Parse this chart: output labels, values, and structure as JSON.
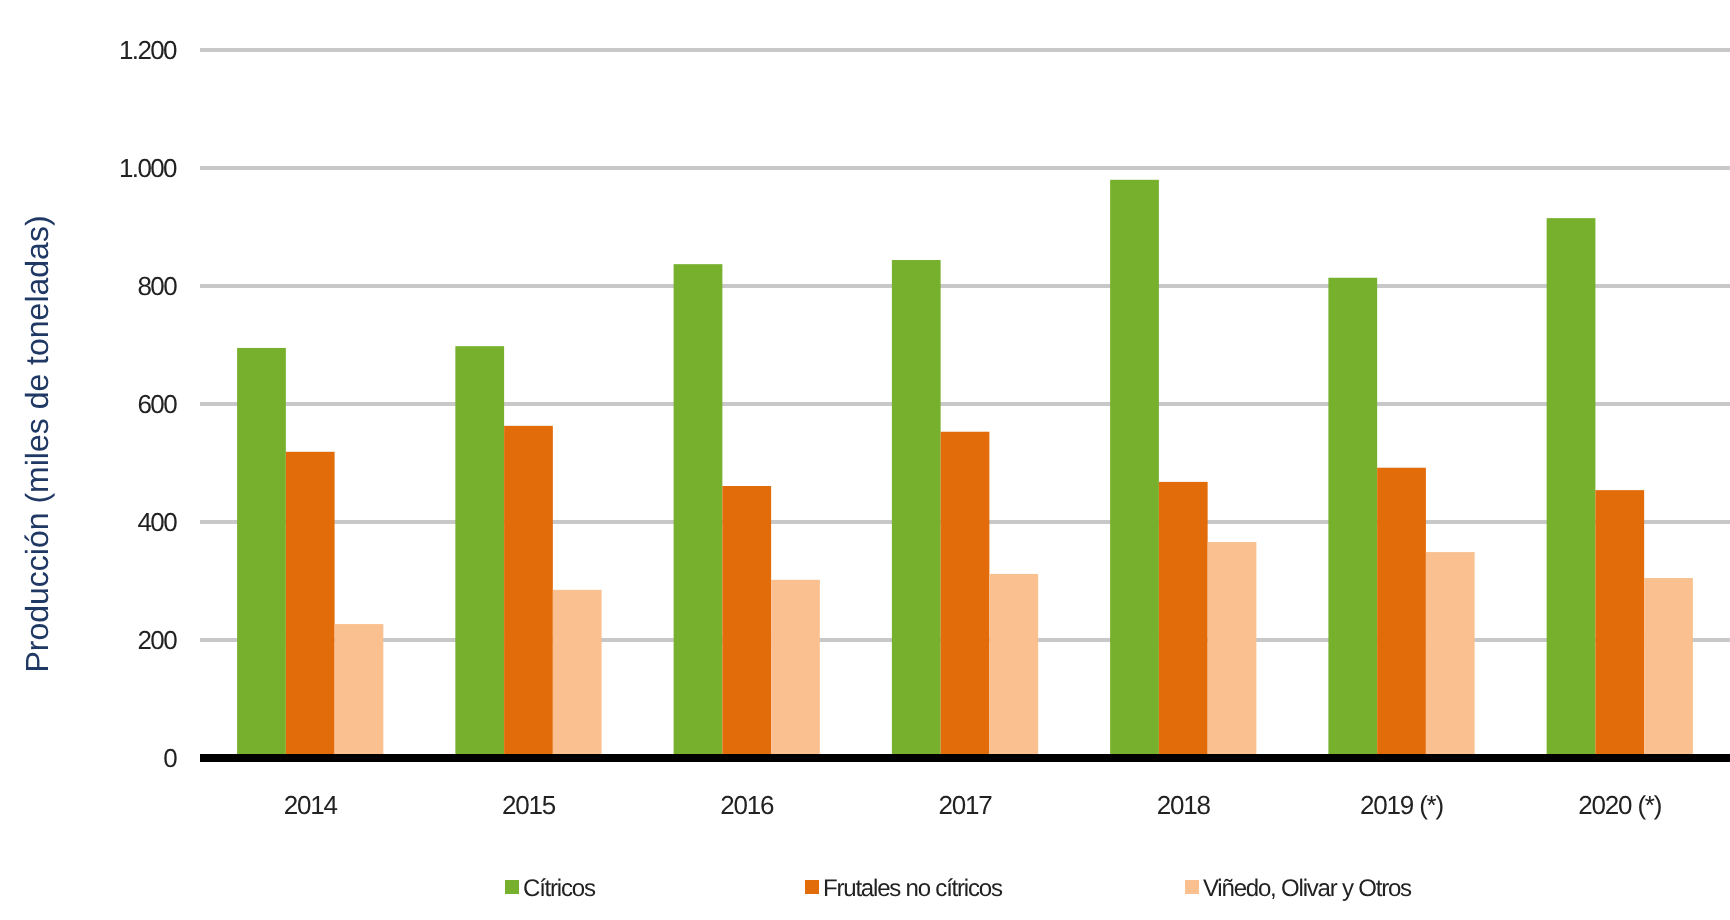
{
  "chart_data": {
    "type": "bar",
    "ylabel": "Producción (miles de toneladas)",
    "categories": [
      "2014",
      "2015",
      "2016",
      "2017",
      "2018",
      "2019 (*)",
      "2020 (*)"
    ],
    "series": [
      {
        "name": "Cítricos",
        "color": "#76b02d",
        "values": [
          695,
          698,
          837,
          844,
          980,
          814,
          915
        ]
      },
      {
        "name": "Frutales no cítricos",
        "color": "#e36c0a",
        "values": [
          519,
          563,
          461,
          553,
          468,
          492,
          454
        ]
      },
      {
        "name": "Viñedo, Olivar y Otros",
        "color": "#fac090",
        "values": [
          227,
          285,
          302,
          312,
          366,
          349,
          305
        ]
      }
    ],
    "ylim": [
      0,
      1200
    ],
    "yticks": [
      0,
      200,
      400,
      600,
      800,
      {
        "value": 1000,
        "label": "1.000"
      },
      {
        "value": 1200,
        "label": "1.200"
      }
    ],
    "grid": "y",
    "legend": "bottom"
  }
}
